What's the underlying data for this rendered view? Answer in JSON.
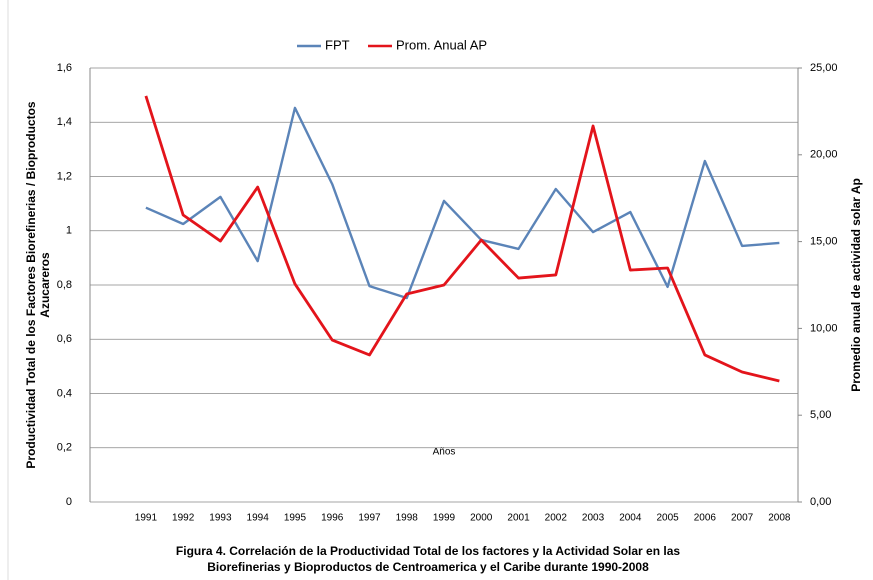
{
  "chart_data": {
    "type": "line",
    "legend": "top",
    "grid": true,
    "xlabel": "Años",
    "ylabel": [
      "Productividad Total de los Factores Biorefinerias / Bioproductos",
      "Azucareros"
    ],
    "y2label": "Promedio anual de actividad solar Ap",
    "caption": [
      "Figura 4. Correlación de la Productividad Total de los factores y la Actividad Solar en las",
      "Biorefinerias y Bioproductos de Centroamerica y el Caribe durante 1990-2008"
    ],
    "categories": [
      "1991",
      "1992",
      "1993",
      "1994",
      "1995",
      "1996",
      "1997",
      "1998",
      "1999",
      "2000",
      "2001",
      "2002",
      "2003",
      "2004",
      "2005",
      "2006",
      "2007",
      "2008"
    ],
    "series": [
      {
        "name": "FPT",
        "color": "#5b84b8",
        "values": [
          1.085,
          1.025,
          1.125,
          0.888,
          1.453,
          1.172,
          0.796,
          0.752,
          1.11,
          0.966,
          0.933,
          1.154,
          0.995,
          1.069,
          0.793,
          1.257,
          0.944,
          0.955
        ]
      },
      {
        "name": "Prom. Anual AP",
        "color": "#e3141b",
        "axis": "y2",
        "values": [
          23.39,
          16.53,
          15.03,
          18.14,
          12.56,
          9.33,
          8.47,
          11.98,
          12.5,
          15.09,
          12.9,
          13.08,
          21.66,
          13.36,
          13.48,
          8.47,
          7.49,
          6.97
        ]
      }
    ],
    "ylim": [
      0,
      1.6
    ],
    "yticks": [
      0,
      {
        "value": 0.2,
        "label": "0,2"
      },
      {
        "value": 0.4,
        "label": "0,4"
      },
      {
        "value": 0.6,
        "label": "0,6"
      },
      {
        "value": 0.8,
        "label": "0,8"
      },
      1,
      {
        "value": 1.2,
        "label": "1,2"
      },
      {
        "value": 1.4,
        "label": "1,4"
      },
      {
        "value": 1.6,
        "label": "1,6"
      }
    ],
    "y2lim": [
      0,
      25
    ],
    "y2ticks": [
      {
        "value": 0,
        "label": "0,00"
      },
      {
        "value": 5,
        "label": "5,00"
      },
      {
        "value": 10,
        "label": "10,00"
      },
      {
        "value": 15,
        "label": "15,00"
      },
      {
        "value": 20,
        "label": "20,00"
      },
      {
        "value": 25,
        "label": "25,00"
      }
    ]
  }
}
